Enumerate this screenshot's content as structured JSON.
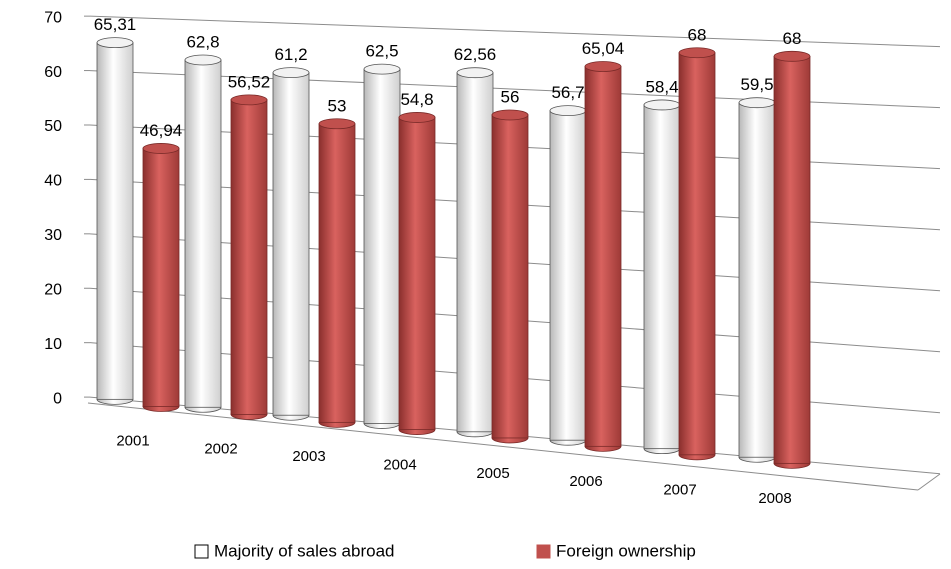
{
  "chart_data": {
    "type": "bar3d",
    "categories": [
      "2001",
      "2002",
      "2003",
      "2004",
      "2005",
      "2006",
      "2007",
      "2008"
    ],
    "series": [
      {
        "name": "Majority of sales abroad",
        "color": "#ffffff",
        "values": [
          65.31,
          62.8,
          61.2,
          62.5,
          62.56,
          56.7,
          58.4,
          59.5
        ],
        "value_labels": [
          "65,31",
          "62,8",
          "61,2",
          "62,5",
          "62,56",
          "56,7",
          "58,4",
          "59,5"
        ]
      },
      {
        "name": "Foreign ownership",
        "color": "#c0504d",
        "values": [
          46.94,
          56.52,
          53,
          54.8,
          56,
          65.04,
          68,
          68
        ],
        "value_labels": [
          "46,94",
          "56,52",
          "53",
          "54,8",
          "56",
          "65,04",
          "68",
          "68"
        ]
      }
    ],
    "ylim": [
      0,
      70
    ],
    "yticks": [
      0,
      10,
      20,
      30,
      40,
      50,
      60,
      70
    ],
    "grid": true,
    "legend": "bottom"
  }
}
